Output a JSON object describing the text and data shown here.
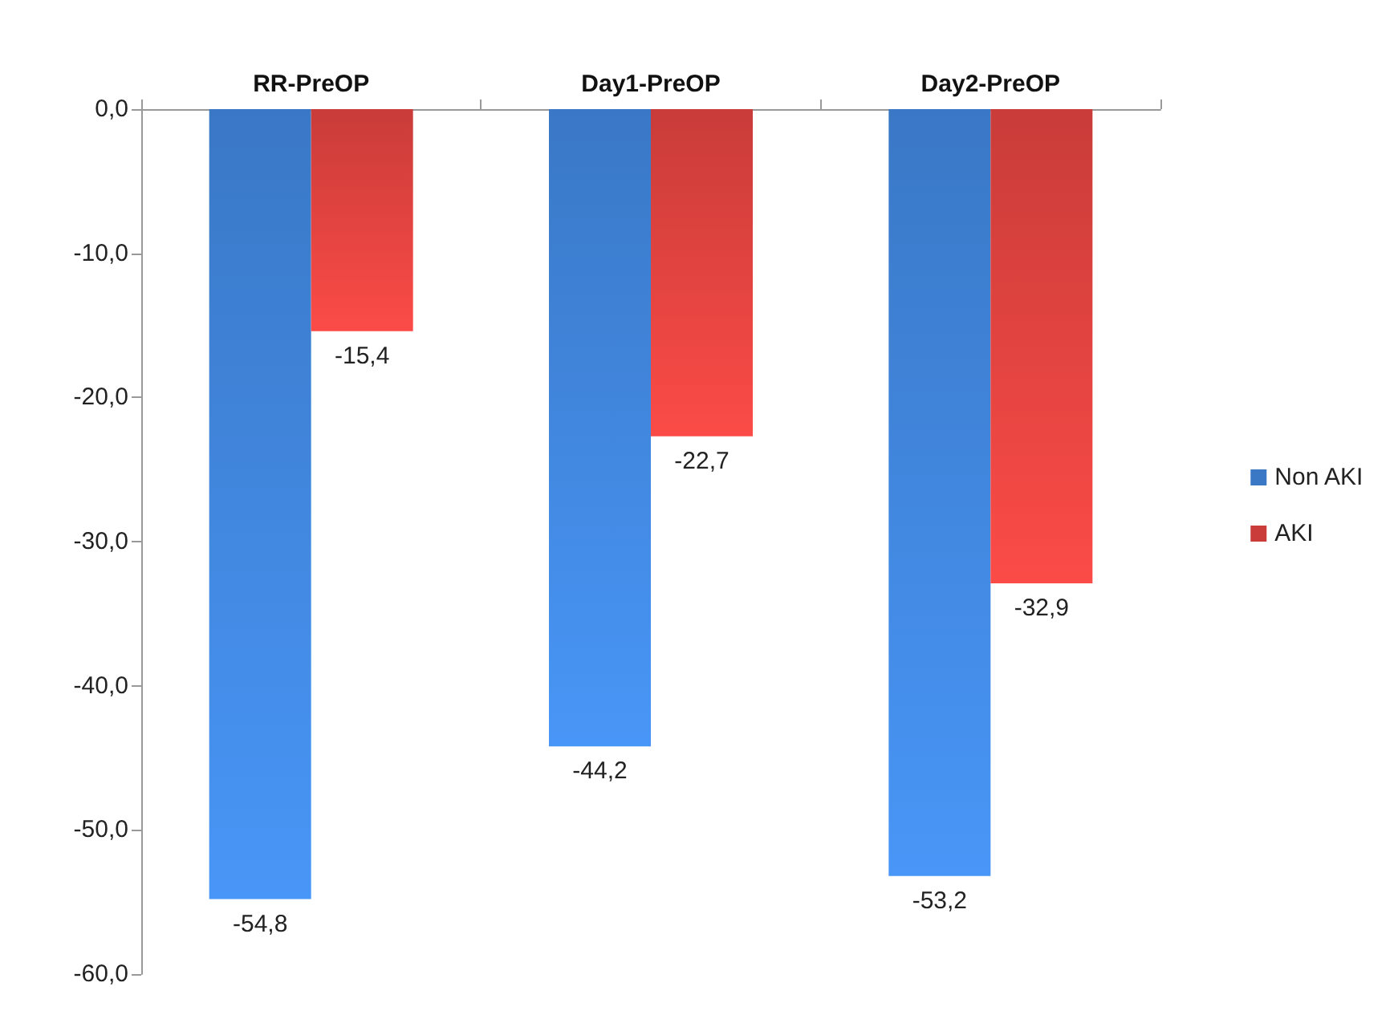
{
  "chart_data": {
    "type": "bar",
    "categories": [
      "RR-PreOP",
      "Day1-PreOP",
      "Day2-PreOP"
    ],
    "series": [
      {
        "name": "Non AKI",
        "color": "#3a78c6",
        "values": [
          -54.8,
          -44.2,
          -53.2
        ],
        "value_labels": [
          "-54,8",
          "-44,2",
          "-53,2"
        ]
      },
      {
        "name": "AKI",
        "color": "#c93c39",
        "values": [
          -15.4,
          -22.7,
          -32.9
        ],
        "value_labels": [
          "-15,4",
          "-22,7",
          "-32,9"
        ]
      }
    ],
    "ylim": [
      -60,
      0
    ],
    "yticks": [
      {
        "value": 0,
        "label": "0,0"
      },
      {
        "value": -10,
        "label": "-10,0"
      },
      {
        "value": -20,
        "label": "-20,0"
      },
      {
        "value": -30,
        "label": "-30,0"
      },
      {
        "value": -40,
        "label": "-40,0"
      },
      {
        "value": -50,
        "label": "-50,0"
      },
      {
        "value": -60,
        "label": "-60,0"
      }
    ],
    "grid": false,
    "legend": "right"
  }
}
